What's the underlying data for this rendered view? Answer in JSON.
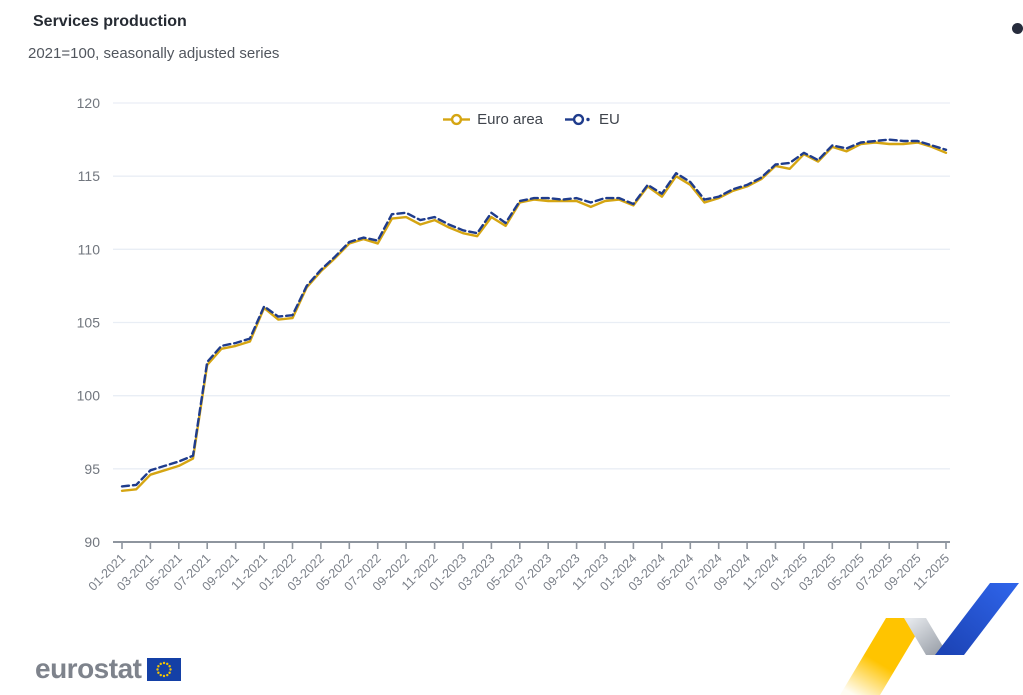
{
  "header": {
    "title": "Services production",
    "subtitle": "2021=100, seasonally adjusted series"
  },
  "footer": {
    "logo_text": "eurostat"
  },
  "chart_data": {
    "type": "line",
    "title": "Services production",
    "subtitle": "2021=100, seasonally adjusted series",
    "ylim": [
      90,
      120
    ],
    "yticks": [
      90,
      95,
      100,
      105,
      110,
      115,
      120
    ],
    "grid": "horizontal",
    "legend_position": "top-center",
    "x_tick_labels_every": 2,
    "x": [
      "01-2021",
      "02-2021",
      "03-2021",
      "04-2021",
      "05-2021",
      "06-2021",
      "07-2021",
      "08-2021",
      "09-2021",
      "10-2021",
      "11-2021",
      "12-2021",
      "01-2022",
      "02-2022",
      "03-2022",
      "04-2022",
      "05-2022",
      "06-2022",
      "07-2022",
      "08-2022",
      "09-2022",
      "10-2022",
      "11-2022",
      "12-2022",
      "01-2023",
      "02-2023",
      "03-2023",
      "04-2023",
      "05-2023",
      "06-2023",
      "07-2023",
      "08-2023",
      "09-2023",
      "10-2023",
      "11-2023",
      "12-2023",
      "01-2024",
      "02-2024",
      "03-2024",
      "04-2024",
      "05-2024",
      "06-2024",
      "07-2024",
      "08-2024",
      "09-2024",
      "10-2024",
      "11-2024",
      "12-2024",
      "01-2025",
      "02-2025",
      "03-2025",
      "04-2025",
      "05-2025",
      "06-2025",
      "07-2025",
      "08-2025",
      "09-2025",
      "10-2025",
      "11-2025"
    ],
    "series": [
      {
        "name": "Euro area",
        "color": "#D5A512",
        "style": "solid",
        "marker": "circle",
        "values": [
          93.5,
          93.6,
          94.6,
          94.9,
          95.2,
          95.7,
          102.1,
          103.2,
          103.4,
          103.7,
          106.0,
          105.2,
          105.3,
          107.4,
          108.5,
          109.4,
          110.4,
          110.7,
          110.4,
          112.1,
          112.2,
          111.7,
          112.0,
          111.5,
          111.1,
          110.9,
          112.2,
          111.6,
          113.2,
          113.4,
          113.3,
          113.3,
          113.3,
          112.9,
          113.3,
          113.4,
          113.0,
          114.3,
          113.6,
          115.0,
          114.4,
          113.2,
          113.5,
          114.0,
          114.3,
          114.8,
          115.7,
          115.5,
          116.5,
          116.0,
          117.0,
          116.7,
          117.2,
          117.3,
          117.2,
          117.2,
          117.3,
          117.0,
          116.6
        ]
      },
      {
        "name": "EU",
        "color": "#1F3C8C",
        "style": "dashed",
        "marker": "circle",
        "values": [
          93.8,
          93.9,
          94.9,
          95.2,
          95.5,
          95.9,
          102.3,
          103.4,
          103.6,
          103.9,
          106.1,
          105.4,
          105.5,
          107.5,
          108.6,
          109.5,
          110.5,
          110.8,
          110.6,
          112.4,
          112.5,
          112.0,
          112.2,
          111.7,
          111.3,
          111.1,
          112.5,
          111.8,
          113.3,
          113.5,
          113.5,
          113.4,
          113.5,
          113.2,
          113.5,
          113.5,
          113.1,
          114.4,
          113.8,
          115.2,
          114.6,
          113.4,
          113.6,
          114.1,
          114.4,
          114.9,
          115.8,
          115.9,
          116.6,
          116.1,
          117.1,
          116.9,
          117.3,
          117.4,
          117.5,
          117.4,
          117.4,
          117.1,
          116.8
        ]
      }
    ]
  },
  "decorations": {
    "menu_dot_color": "#262C3C",
    "ribbon_yellow": "#FFC400",
    "ribbon_blue": "#2A56CE",
    "ribbon_gray": "#AEB3BB",
    "flag_blue": "#1440A6",
    "flag_star_color": "#F5C400"
  }
}
